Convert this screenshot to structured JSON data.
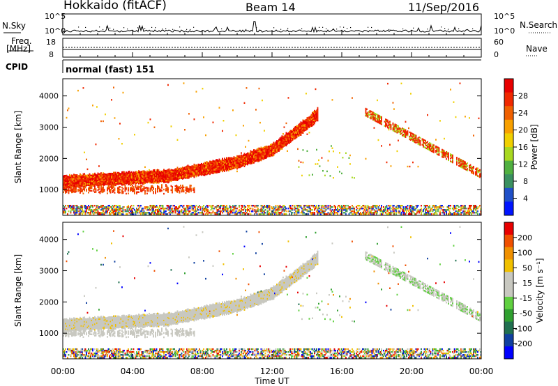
{
  "header": {
    "station": "Hokkaido (fitACF)",
    "beam": "Beam 14",
    "date": "11/Sep/2016"
  },
  "top_panel": {
    "nsky_label": "N.Sky",
    "nsearch_label": "N.Search",
    "nsky_ticks": [
      "10^5",
      "10^0"
    ],
    "nsearch_ticks": [
      "10^5",
      "10^0"
    ],
    "freq_label": "Freq.",
    "freq_unit": "[MHz]",
    "freq_ticks": [
      "18",
      "8"
    ],
    "nave_label": "Nave",
    "nave_ticks": [
      "60",
      "0"
    ],
    "cpid_label": "CPID",
    "cpid_value": "normal (fast) 151"
  },
  "chart_data": [
    {
      "type": "heatmap",
      "ylabel": "Slant Range [km]",
      "yticks": [
        "1000",
        "2000",
        "3000",
        "4000"
      ],
      "ylim": [
        180,
        4550
      ],
      "xlim": [
        0,
        24
      ],
      "colorbar": {
        "label": "Power [dB]",
        "ticks": [
          "4",
          "8",
          "12",
          "16",
          "20",
          "24",
          "28"
        ],
        "range": [
          0,
          30
        ]
      }
    },
    {
      "type": "heatmap",
      "ylabel": "Slant Range [km]",
      "yticks": [
        "1000",
        "2000",
        "3000",
        "4000"
      ],
      "ylim": [
        180,
        4550
      ],
      "xlim": [
        0,
        24
      ],
      "xlabel": "Time UT",
      "xticks": [
        "00:00",
        "04:00",
        "08:00",
        "12:00",
        "16:00",
        "20:00",
        "00:00"
      ],
      "colorbar": {
        "label": "Velocity [m s⁻¹]",
        "ticks": [
          "200",
          "100",
          "50",
          "15",
          "-15",
          "-50",
          "-100",
          "-200"
        ],
        "range": [
          -250,
          250
        ]
      }
    }
  ],
  "colors": {
    "power_scale": [
      "#0014ff",
      "#2050c8",
      "#3a9060",
      "#50b040",
      "#a8d820",
      "#f0d000",
      "#f8a000",
      "#f06000",
      "#f02800",
      "#e80000"
    ],
    "velocity_scale": [
      "#0000ff",
      "#1040a0",
      "#207050",
      "#30a030",
      "#60d040",
      "#c8c8c0",
      "#c8c8c0",
      "#f0c000",
      "#f09000",
      "#f05000",
      "#e80000"
    ]
  }
}
